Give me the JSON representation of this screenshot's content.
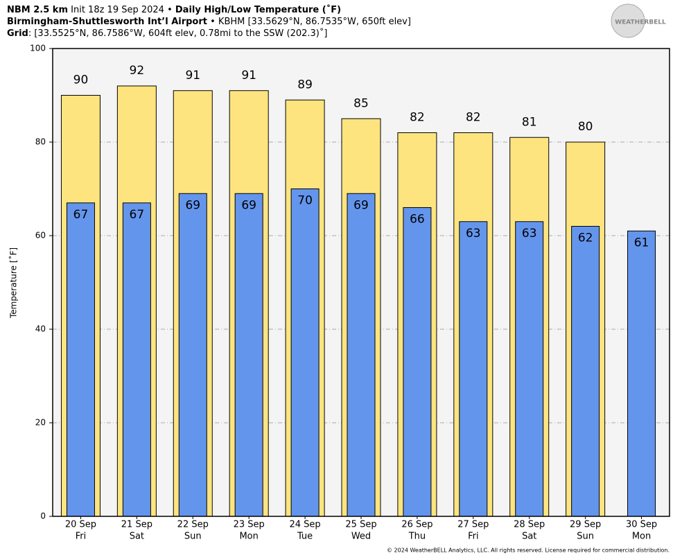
{
  "chart_data": {
    "type": "bar",
    "header": [
      [
        {
          "text": "NBM 2.5 km",
          "bold": true
        },
        {
          "text": " Init 18z 19 Sep 2024 • ",
          "bold": false
        },
        {
          "text": "Daily High/Low Temperature (˚F)",
          "bold": true
        }
      ],
      [
        {
          "text": "Birmingham-Shuttlesworth Int’l Airport",
          "bold": true
        },
        {
          "text": " • KBHM [33.5629°N, 86.7535°W, 650ft elev]",
          "bold": false
        }
      ],
      [
        {
          "text": "Grid",
          "bold": true
        },
        {
          "text": ": [33.5525°N, 86.7586°W, 604ft elev, 0.78mi to the SSW (202.3)˚]",
          "bold": false
        }
      ]
    ],
    "logo": "WEATHERBELL",
    "credit": "© 2024 WeatherBELL Analytics, LLC. All rights reserved. License required for commercial distribution.",
    "ylabel": "Temperature [˚F]",
    "categories": [
      "20 Sep",
      "21 Sep",
      "22 Sep",
      "23 Sep",
      "24 Sep",
      "25 Sep",
      "26 Sep",
      "27 Sep",
      "28 Sep",
      "29 Sep",
      "30 Sep"
    ],
    "weekdays": [
      "Fri",
      "Sat",
      "Sun",
      "Mon",
      "Tue",
      "Wed",
      "Thu",
      "Fri",
      "Sat",
      "Sun",
      "Mon"
    ],
    "series": [
      {
        "color": "#fde47f",
        "values": [
          90,
          92,
          91,
          91,
          89,
          85,
          82,
          82,
          81,
          80,
          null
        ]
      },
      {
        "color": "#6495ed",
        "values": [
          67,
          67,
          69,
          69,
          70,
          69,
          66,
          63,
          63,
          62,
          61
        ]
      }
    ],
    "ylim": [
      0,
      100
    ],
    "yticks": [
      0,
      20,
      40,
      60,
      80,
      100
    ],
    "grid": true
  }
}
